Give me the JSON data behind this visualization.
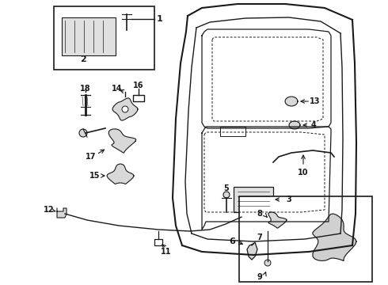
{
  "bg_color": "#ffffff",
  "lc": "#1a1a1a",
  "figsize": [
    4.9,
    3.6
  ],
  "dpi": 100,
  "label_fontsize": 8,
  "label_fontsize_sm": 7
}
